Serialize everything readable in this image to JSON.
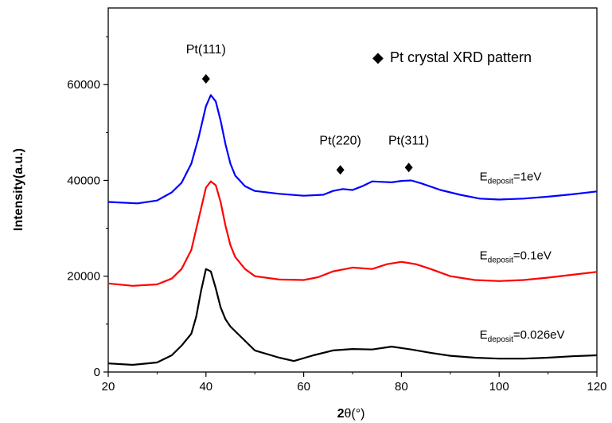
{
  "chart_data": {
    "type": "line",
    "xlabel_bold": "2",
    "xlabel_rest": "θ(°)",
    "ylabel": "Intensity(a.u.)",
    "xlim": [
      20,
      120
    ],
    "ylim": [
      0,
      76000
    ],
    "xticks": [
      20,
      40,
      60,
      80,
      100,
      120
    ],
    "yticks": [
      0,
      20000,
      40000,
      60000
    ],
    "grid": false,
    "legend": {
      "placement": "top-right",
      "marker": "◆",
      "text": "Pt crystal XRD pattern"
    },
    "annotations": [
      {
        "text": "Pt(111)",
        "x": 40,
        "y": 66500,
        "marker_y": 61200
      },
      {
        "text": "Pt(220)",
        "x": 67.5,
        "y": 47500,
        "marker_y": 42200
      },
      {
        "text": "Pt(311)",
        "x": 81.5,
        "y": 47500,
        "marker_y": 42700
      }
    ],
    "series": [
      {
        "label_main": "E",
        "label_sub": "deposit",
        "label_tail": "=1eV",
        "label_x": 96,
        "label_y": 40000,
        "color": "#0000ff",
        "x": [
          20,
          26,
          30,
          33,
          35,
          37,
          38.5,
          40,
          41,
          42,
          43,
          44,
          45,
          46,
          48,
          50,
          55,
          60,
          64,
          66,
          68,
          70,
          72,
          74,
          76,
          78,
          80,
          82,
          84,
          88,
          92,
          96,
          100,
          105,
          110,
          115,
          120
        ],
        "y": [
          35500,
          35200,
          35800,
          37500,
          39500,
          43500,
          49000,
          55500,
          57800,
          56500,
          52500,
          47500,
          43500,
          41000,
          38800,
          37800,
          37200,
          36800,
          37000,
          37800,
          38200,
          38000,
          38800,
          39800,
          39700,
          39600,
          39900,
          40000,
          39400,
          38000,
          37000,
          36200,
          36000,
          36200,
          36600,
          37100,
          37700
        ]
      },
      {
        "label_main": "E",
        "label_sub": "deposit",
        "label_tail": "=0.1eV",
        "label_x": 96,
        "label_y": 23500,
        "color": "#ff0000",
        "x": [
          20,
          25,
          30,
          33,
          35,
          37,
          38.5,
          40,
          41,
          42,
          43,
          44,
          45,
          46,
          48,
          50,
          55,
          60,
          63,
          66,
          70,
          74,
          77,
          80,
          83,
          86,
          90,
          95,
          100,
          105,
          110,
          115,
          120
        ],
        "y": [
          18500,
          18000,
          18300,
          19500,
          21500,
          25500,
          32000,
          38500,
          39800,
          39000,
          35500,
          30500,
          26500,
          24000,
          21500,
          20000,
          19300,
          19200,
          19800,
          21000,
          21800,
          21500,
          22500,
          23000,
          22500,
          21500,
          20000,
          19200,
          19000,
          19200,
          19700,
          20300,
          20900
        ]
      },
      {
        "label_main": "E",
        "label_sub": "deposit",
        "label_tail": "=0.026eV",
        "label_x": 96,
        "label_y": 7000,
        "color": "#000000",
        "x": [
          20,
          25,
          30,
          33,
          35,
          37,
          38,
          39,
          40,
          41,
          42,
          43,
          44,
          45,
          46,
          48,
          50,
          55,
          58,
          62,
          66,
          70,
          74,
          78,
          82,
          86,
          90,
          95,
          100,
          105,
          110,
          115,
          120
        ],
        "y": [
          1800,
          1500,
          2000,
          3500,
          5500,
          8000,
          11500,
          17000,
          21500,
          21000,
          17500,
          13500,
          11000,
          9500,
          8500,
          6500,
          4500,
          3000,
          2300,
          3500,
          4500,
          4800,
          4700,
          5300,
          4700,
          4000,
          3400,
          3000,
          2800,
          2800,
          3000,
          3300,
          3500
        ]
      }
    ]
  }
}
